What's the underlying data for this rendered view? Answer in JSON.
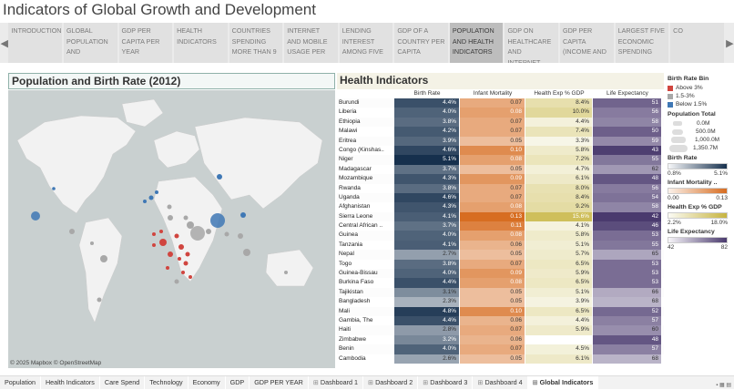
{
  "title": "Indicators of Global Growth and Development",
  "story_points": [
    "INTRODUCTION",
    "GLOBAL POPULATION AND",
    "GDP PER CAPITA PER YEAR",
    "HEALTH INDICATORS",
    "COUNTRIES SPENDING MORE THAN 9",
    "INTERNET AND MOBILE USAGE PER",
    "LENDING INTEREST AMONG FIVE",
    "GDP OF A COUNTRY PER CAPITA",
    "POPULATION AND HEALTH INDICATORS",
    "GDP ON HEALTHCARE AND INTERNET",
    "GDP PER CAPITA (INCOME AND",
    "LARGEST FIVE ECONOMIC SPENDING",
    "CO"
  ],
  "active_story": "POPULATION AND HEALTH INDICATORS",
  "nav": {
    "prev": "◀",
    "next": "▶"
  },
  "map": {
    "title": "Population and Birth Rate (2012)",
    "copyright": "© 2025 Mapbox © OpenStreetMap"
  },
  "health": {
    "title": "Health Indicators",
    "columns": [
      "Birth Rate",
      "Infant Mortality",
      "Health Exp % GDP",
      "Life Expectancy"
    ],
    "rows": [
      [
        "Burundi",
        "4.4%",
        "0.07",
        "8.4%",
        "51"
      ],
      [
        "Liberia",
        "4.0%",
        "0.08",
        "10.0%",
        "56"
      ],
      [
        "Ethiopia",
        "3.8%",
        "0.07",
        "4.4%",
        "58"
      ],
      [
        "Malawi",
        "4.2%",
        "0.07",
        "7.4%",
        "50"
      ],
      [
        "Eritrea",
        "3.9%",
        "0.05",
        "3.3%",
        "59"
      ],
      [
        "Congo (Kinshas..",
        "4.6%",
        "0.10",
        "5.8%",
        "43"
      ],
      [
        "Niger",
        "5.1%",
        "0.08",
        "7.2%",
        "55"
      ],
      [
        "Madagascar",
        "3.7%",
        "0.05",
        "4.7%",
        "62"
      ],
      [
        "Mozambique",
        "4.3%",
        "0.09",
        "6.1%",
        "48"
      ],
      [
        "Rwanda",
        "3.8%",
        "0.07",
        "8.0%",
        "56"
      ],
      [
        "Uganda",
        "4.6%",
        "0.07",
        "8.4%",
        "54"
      ],
      [
        "Afghanistan",
        "4.3%",
        "0.08",
        "9.2%",
        "58"
      ],
      [
        "Sierra Leone",
        "4.1%",
        "0.13",
        "15.6%",
        "42"
      ],
      [
        "Central African ..",
        "3.7%",
        "0.11",
        "4.1%",
        "46"
      ],
      [
        "Guinea",
        "4.0%",
        "0.08",
        "5.8%",
        "53"
      ],
      [
        "Tanzania",
        "4.1%",
        "0.06",
        "5.1%",
        "55"
      ],
      [
        "Nepal",
        "2.7%",
        "0.05",
        "5.7%",
        "65"
      ],
      [
        "Togo",
        "3.8%",
        "0.07",
        "6.5%",
        "53"
      ],
      [
        "Guinea-Bissau",
        "4.0%",
        "0.09",
        "5.9%",
        "53"
      ],
      [
        "Burkina Faso",
        "4.4%",
        "0.08",
        "6.5%",
        "53"
      ],
      [
        "Tajikistan",
        "3.1%",
        "0.05",
        "5.1%",
        "66"
      ],
      [
        "Bangladesh",
        "2.3%",
        "0.05",
        "3.9%",
        "68"
      ],
      [
        "Mali",
        "4.8%",
        "0.10",
        "6.5%",
        "52"
      ],
      [
        "Gambia, The",
        "4.4%",
        "0.06",
        "4.4%",
        "57"
      ],
      [
        "Haiti",
        "2.8%",
        "0.07",
        "5.9%",
        "60"
      ],
      [
        "Zimbabwe",
        "3.2%",
        "0.06",
        "",
        "48"
      ],
      [
        "Benin",
        "4.0%",
        "0.07",
        "4.5%",
        "57"
      ],
      [
        "Cambodia",
        "2.6%",
        "0.05",
        "6.1%",
        "68"
      ]
    ]
  },
  "legend": {
    "birth_bin_title": "Birth Rate Bin",
    "birth_bins": [
      {
        "label": "Above 3%",
        "color": "#d0453f"
      },
      {
        "label": "1.5-3%",
        "color": "#a8a8a8"
      },
      {
        "label": "Below 1.5%",
        "color": "#3f78b5"
      }
    ],
    "pop_title": "Population Total",
    "pop_sizes": [
      "0.0M",
      "500.0M",
      "1,000.0M",
      "1,350.7M"
    ],
    "birth_title": "Birth Rate",
    "birth_min": "0.8%",
    "birth_max": "5.1%",
    "infant_title": "Infant Mortality ..",
    "infant_min": "0.00",
    "infant_max": "0.13",
    "health_title": "Health Exp % GDP",
    "health_min": "2.2%",
    "health_max": "18.0%",
    "life_title": "Life Expectancy",
    "life_min": "42",
    "life_max": "82"
  },
  "tabs": [
    "Population",
    "Health Indicators",
    "Care Spend",
    "Technology",
    "Economy",
    "GDP",
    "GDP PER YEAR",
    "Dashboard 1",
    "Dashboard 2",
    "Dashboard 3",
    "Dashboard 4",
    "Global Indicators"
  ],
  "active_tab": "Global Indicators"
}
